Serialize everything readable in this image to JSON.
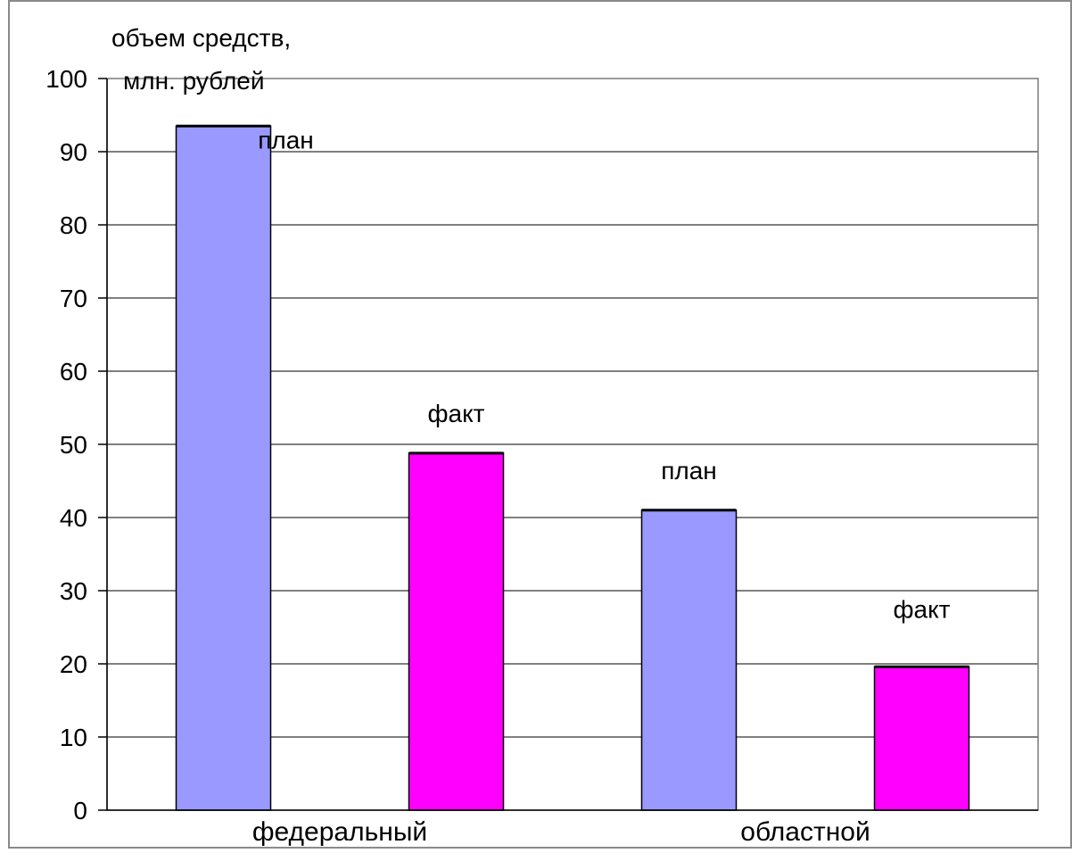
{
  "chart_data": {
    "type": "bar",
    "ylabel_lines": [
      "объем средств,",
      "млн. рублей"
    ],
    "ylim": [
      0,
      100
    ],
    "yticks": [
      0,
      10,
      20,
      30,
      40,
      50,
      60,
      70,
      80,
      90,
      100
    ],
    "grid": true,
    "categories": [
      "федеральный",
      "областной"
    ],
    "bars": [
      {
        "category": "федеральный",
        "label": "план",
        "value": 93.5,
        "color": "#9999ff"
      },
      {
        "category": "федеральный",
        "label": "факт",
        "value": 48.8,
        "color": "#ff00ff"
      },
      {
        "category": "областной",
        "label": "план",
        "value": 41.0,
        "color": "#9999ff"
      },
      {
        "category": "областной",
        "label": "факт",
        "value": 19.6,
        "color": "#ff00ff"
      }
    ]
  }
}
